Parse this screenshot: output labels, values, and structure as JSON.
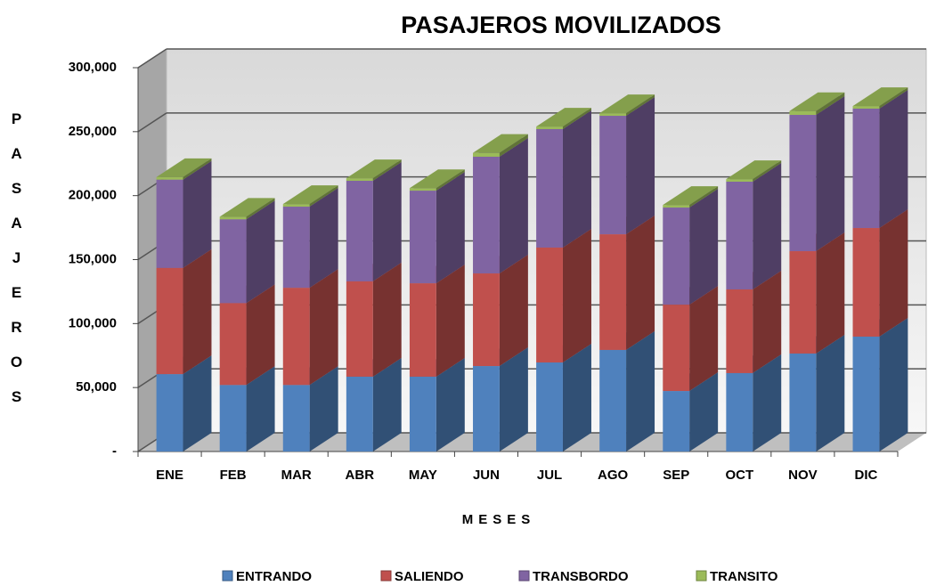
{
  "chart_data": {
    "type": "bar3d_stacked",
    "title": "PASAJEROS MOVILIZADOS",
    "x_label": "MESES",
    "y_label": "PASAJEROS",
    "categories": [
      "ENE",
      "FEB",
      "MAR",
      "ABR",
      "MAY",
      "JUN",
      "JUL",
      "AGO",
      "SEP",
      "OCT",
      "NOV",
      "DIC"
    ],
    "series": [
      {
        "name": "ENTRANDO",
        "color": "#4f81bd",
        "values": [
          60500,
          52000,
          52000,
          58500,
          58500,
          66800,
          69600,
          79400,
          47300,
          61300,
          76600,
          89800
        ]
      },
      {
        "name": "SALIENDO",
        "color": "#c0504d",
        "values": [
          83000,
          64000,
          76000,
          74500,
          73000,
          72400,
          89800,
          90400,
          67500,
          65400,
          80000,
          84900
        ]
      },
      {
        "name": "TRANSBORDO",
        "color": "#8064a2",
        "values": [
          69000,
          65500,
          63400,
          78600,
          72400,
          91200,
          92600,
          92600,
          75900,
          84200,
          106500,
          93300
        ]
      },
      {
        "name": "TRANSITO",
        "color": "#9bbb59",
        "values": [
          2000,
          2000,
          2000,
          2000,
          2000,
          3000,
          2000,
          2000,
          2000,
          2000,
          3000,
          2000
        ]
      }
    ],
    "ylim": [
      0,
      300000
    ],
    "yticks": [
      {
        "value": 0,
        "label": "-"
      },
      {
        "value": 50000,
        "label": "50,000"
      },
      {
        "value": 100000,
        "label": "100,000"
      },
      {
        "value": 150000,
        "label": "150,000"
      },
      {
        "value": 200000,
        "label": "200,000"
      },
      {
        "value": 250000,
        "label": "250,000"
      },
      {
        "value": 300000,
        "label": "300,000"
      }
    ],
    "grid": true,
    "legend": "bottom"
  }
}
